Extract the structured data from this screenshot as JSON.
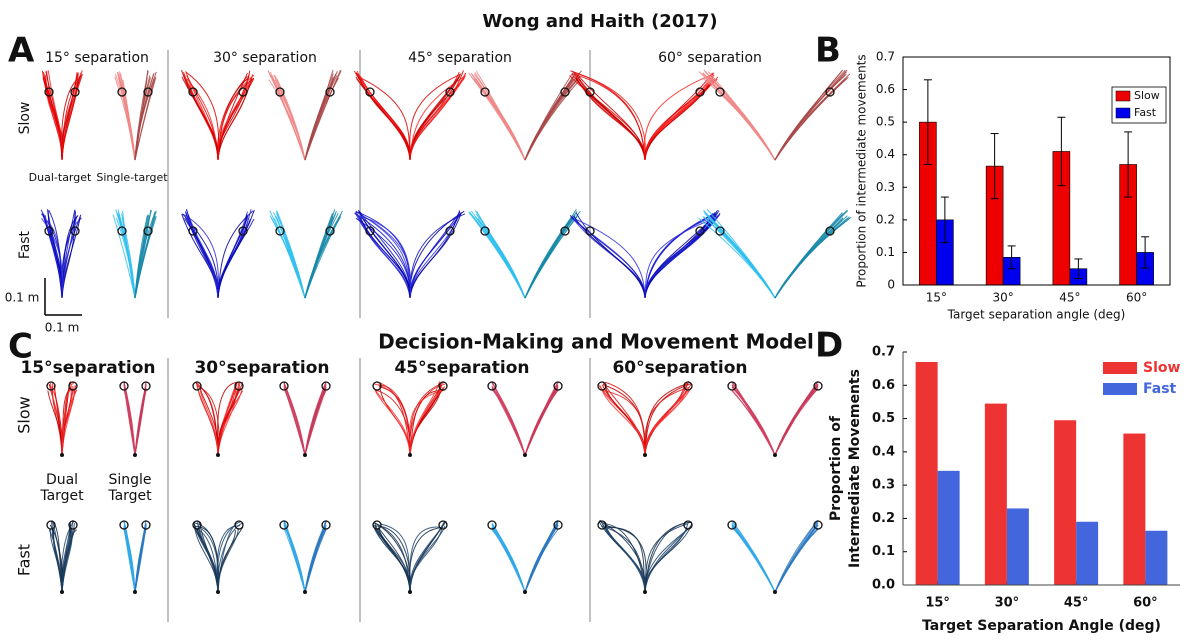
{
  "panel_a": {
    "label": "A",
    "title": "Wong and Haith (2017)",
    "separations": [
      "15° separation",
      "30° separation",
      "45° separation",
      "60° separation"
    ],
    "rows": [
      "Slow",
      "Fast"
    ],
    "conditions": [
      "Dual-target",
      "Single-target"
    ],
    "scale_y": "0.1 m",
    "scale_x": "0.1 m"
  },
  "panel_c": {
    "label": "C",
    "title": "Decision-Making and Movement Model",
    "separations": [
      "15°separation",
      "30°separation",
      "45°separation",
      "60°separation"
    ],
    "rows": [
      "Slow",
      "Fast"
    ],
    "conditions": [
      [
        "Dual",
        "Target"
      ],
      [
        "Single",
        "Target"
      ]
    ]
  },
  "chart_data": [
    {
      "type": "bar",
      "label": "B",
      "ylabel": "Proportion of intermediate movements",
      "xlabel": "Target separation angle (deg)",
      "categories": [
        "15°",
        "30°",
        "45°",
        "60°"
      ],
      "series": [
        {
          "name": "Slow",
          "color": "#ee0000",
          "values": [
            0.5,
            0.365,
            0.41,
            0.37
          ],
          "errors": [
            0.13,
            0.1,
            0.105,
            0.1
          ]
        },
        {
          "name": "Fast",
          "color": "#0000ee",
          "values": [
            0.2,
            0.085,
            0.05,
            0.1
          ],
          "errors": [
            0.07,
            0.035,
            0.03,
            0.048
          ]
        }
      ],
      "ylim": [
        0,
        0.7
      ],
      "yticks": [
        0,
        0.1,
        0.2,
        0.3,
        0.4,
        0.5,
        0.6,
        0.7
      ],
      "legend": "upper-right"
    },
    {
      "type": "bar",
      "label": "D",
      "ylabel": [
        "Proportion of",
        "Intermediate Movements"
      ],
      "xlabel": "Target Separation Angle (deg)",
      "categories": [
        "15°",
        "30°",
        "45°",
        "60°"
      ],
      "series": [
        {
          "name": "Slow",
          "color": "#ee3333",
          "values": [
            0.67,
            0.545,
            0.495,
            0.455
          ]
        },
        {
          "name": "Fast",
          "color": "#4466dd",
          "values": [
            0.343,
            0.23,
            0.19,
            0.163
          ]
        }
      ],
      "ylim": [
        0,
        0.7
      ],
      "yticks": [
        {
          "value": 0,
          "label": "0.0"
        },
        0.1,
        0.2,
        0.3,
        0.4,
        0.5,
        0.6,
        0.7
      ],
      "legend": "upper-right"
    }
  ]
}
